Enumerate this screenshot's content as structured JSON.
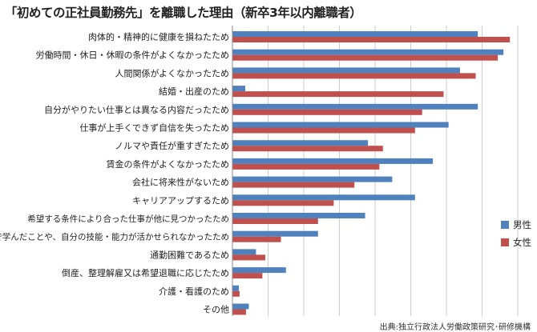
{
  "title": "「初めての正社員勤務先」を離職した理由（新卒3年以内離職者）",
  "source": "出典:独立行政法人労働政策研究･研修機構",
  "colors": {
    "male": "#4f81bd",
    "female": "#c0504d",
    "grid": "#cccccc"
  },
  "chart_data": {
    "type": "bar",
    "orientation": "horizontal",
    "title": "「初めての正社員勤務先」を離職した理由（新卒3年以内離職者）",
    "xlabel": "",
    "ylabel": "",
    "xlim": [
      0,
      40
    ],
    "grid": true,
    "legend_position": "right",
    "categories": [
      "肉体的・精神的に健康を損ねたため",
      "労働時間・休日・休暇の条件がよくなかったため",
      "人間関係がよくなかったため",
      "結婚・出産のため",
      "自分がやりたい仕事とは異なる内容だったため",
      "仕事が上手くできず自信を失ったため",
      "ノルマや責任が重すぎたため",
      "賃金の条件がよくなかったため",
      "会社に将来性がないため",
      "キャリアアップするため",
      "希望する条件により合った仕事が他に見つかったため",
      "学校で学んだことや、自分の技能・能力が活かせられなかったため",
      "通勤困難であるため",
      "倒産、整理解雇又は希望退職に応じたため",
      "介護・看護のため",
      "その他"
    ],
    "series": [
      {
        "name": "男性",
        "values": [
          34.4,
          38.0,
          31.9,
          1.8,
          34.4,
          30.3,
          19.0,
          28.1,
          22.4,
          25.6,
          18.6,
          12.0,
          3.3,
          7.5,
          0.9,
          2.3
        ]
      },
      {
        "name": "女性",
        "values": [
          38.9,
          37.2,
          34.1,
          29.6,
          26.6,
          25.6,
          21.1,
          20.6,
          17.1,
          14.2,
          12.0,
          6.8,
          4.6,
          4.2,
          1.0,
          1.9
        ]
      }
    ]
  }
}
